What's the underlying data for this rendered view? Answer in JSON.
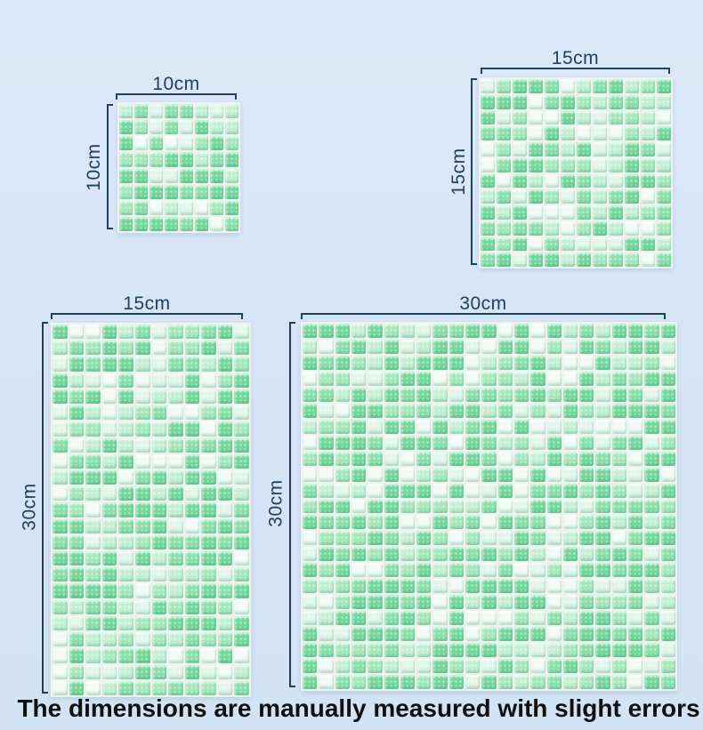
{
  "page": {
    "caption": "The dimensions are manually measured with slight errors"
  },
  "colors": {
    "background_top": "#dbe8f9",
    "background_bottom": "#d2e3f4",
    "dimension": "#21405f",
    "caption": "#101010",
    "grout": "#eef3ee"
  },
  "mosaic": {
    "palette": [
      "#74d89e",
      "#8ae0ad",
      "#a5e8bd",
      "#c3f0d3",
      "#e2f6e9",
      "#f3fbf5"
    ],
    "weights": [
      0.3,
      0.17,
      0.16,
      0.13,
      0.12,
      0.12
    ]
  },
  "tiles": [
    {
      "name": "10x10",
      "width_label": "10cm",
      "height_label": "10cm",
      "cols": 8,
      "rows": 8,
      "seed": 11
    },
    {
      "name": "15x15",
      "width_label": "15cm",
      "height_label": "15cm",
      "cols": 12,
      "rows": 12,
      "seed": 23
    },
    {
      "name": "15x30",
      "width_label": "15cm",
      "height_label": "30cm",
      "cols": 12,
      "rows": 23,
      "seed": 37
    },
    {
      "name": "30x30",
      "width_label": "30cm",
      "height_label": "30cm",
      "cols": 23,
      "rows": 23,
      "seed": 53
    }
  ]
}
